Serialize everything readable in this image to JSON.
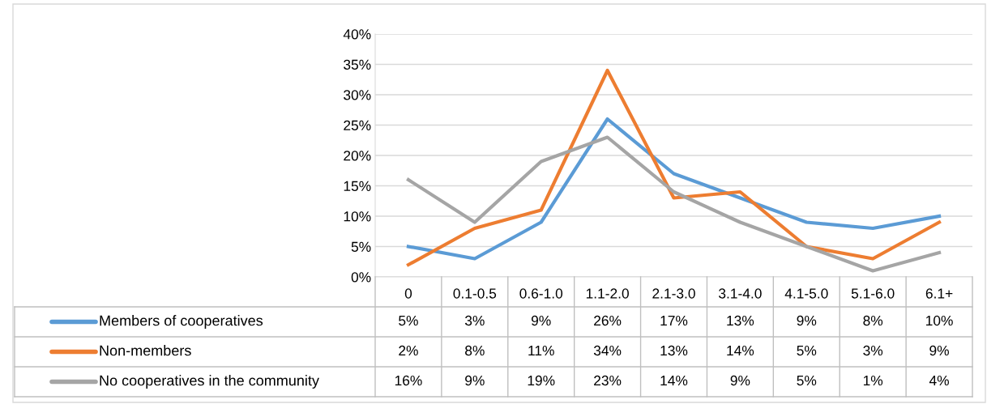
{
  "chart_data": {
    "type": "line",
    "categories": [
      "0",
      "0.1-0.5",
      "0.6-1.0",
      "1.1-2.0",
      "2.1-3.0",
      "3.1-4.0",
      "4.1-5.0",
      "5.1-6.0",
      "6.1+"
    ],
    "series": [
      {
        "name": "Members of cooperatives",
        "color": "#5b9bd5",
        "values": [
          5,
          3,
          9,
          26,
          17,
          13,
          9,
          8,
          10
        ],
        "value_labels": [
          "5%",
          "3%",
          "9%",
          "26%",
          "17%",
          "13%",
          "9%",
          "8%",
          "10%"
        ]
      },
      {
        "name": "Non-members",
        "color": "#ed7d31",
        "values": [
          2,
          8,
          11,
          34,
          13,
          14,
          5,
          3,
          9
        ],
        "value_labels": [
          "2%",
          "8%",
          "11%",
          "34%",
          "13%",
          "14%",
          "5%",
          "3%",
          "9%"
        ]
      },
      {
        "name": "No cooperatives in the community",
        "color": "#a5a5a5",
        "values": [
          16,
          9,
          19,
          23,
          14,
          9,
          5,
          1,
          4
        ],
        "value_labels": [
          "16%",
          "9%",
          "19%",
          "23%",
          "14%",
          "9%",
          "5%",
          "1%",
          "4%"
        ]
      }
    ],
    "ylim": [
      0,
      40
    ],
    "yticks": [
      {
        "value": 0,
        "label": "0%"
      },
      {
        "value": 5,
        "label": "5%"
      },
      {
        "value": 10,
        "label": "10%"
      },
      {
        "value": 15,
        "label": "15%"
      },
      {
        "value": 20,
        "label": "20%"
      },
      {
        "value": 25,
        "label": "25%"
      },
      {
        "value": 30,
        "label": "30%"
      },
      {
        "value": 35,
        "label": "35%"
      },
      {
        "value": 40,
        "label": "40%"
      }
    ],
    "grid": "y",
    "legend": "bottom",
    "marker": "none",
    "line_style": "solid"
  }
}
